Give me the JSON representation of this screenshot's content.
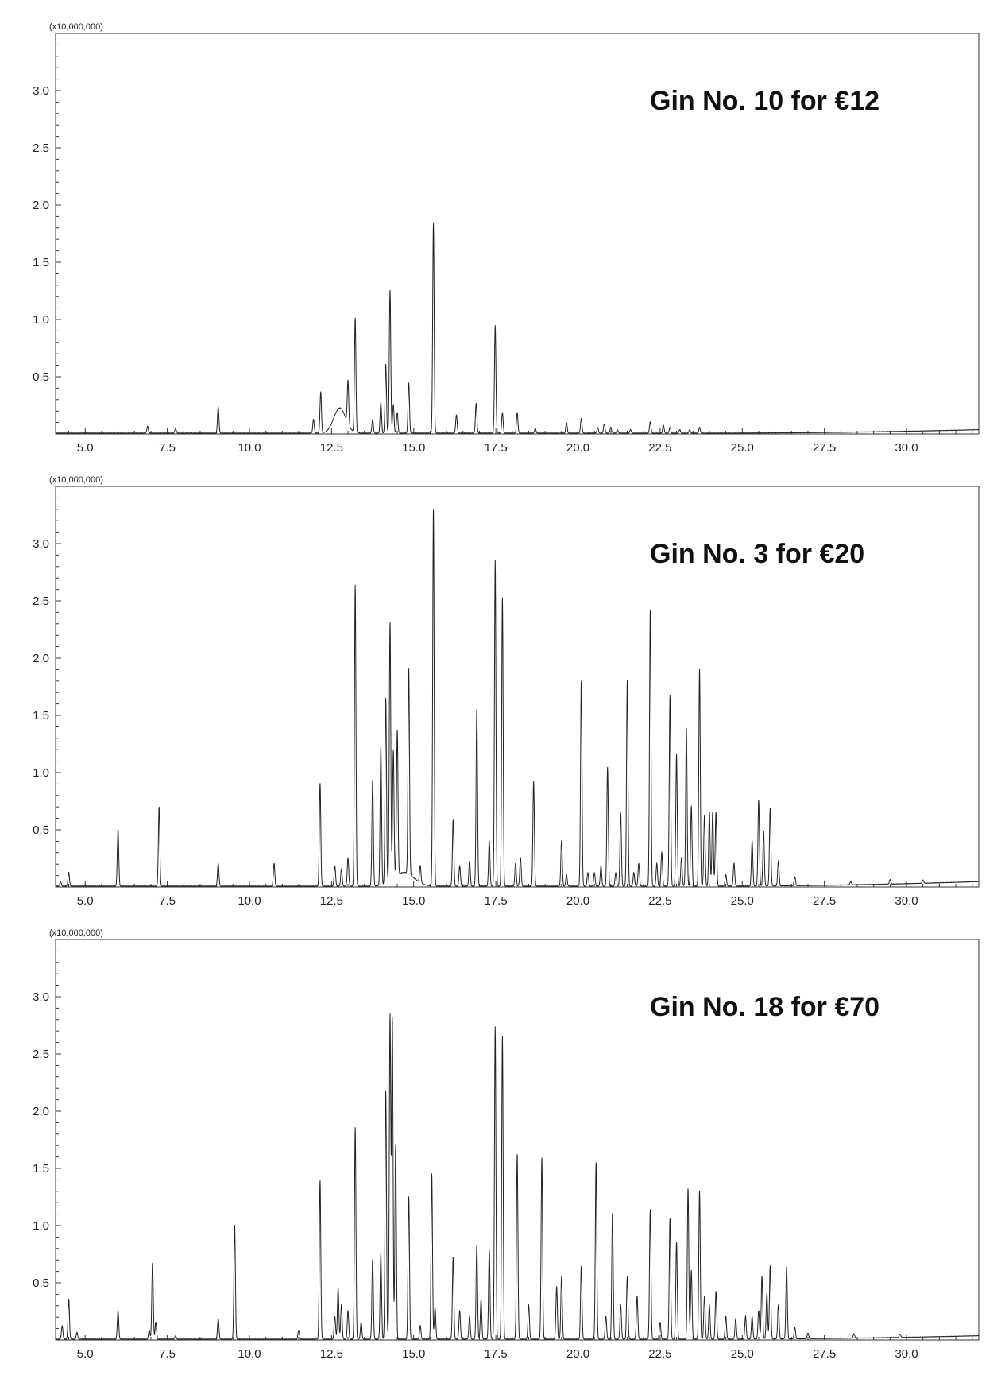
{
  "chart_data": [
    {
      "type": "line",
      "title": "Gin No. 10 for €12",
      "multiplier_label": "(x10,000,000)",
      "xlabel": "",
      "ylabel": "",
      "xlim": [
        4.1,
        32.2
      ],
      "ylim": [
        0,
        3.5
      ],
      "x_ticks": [
        "5.0",
        "7.5",
        "10.0",
        "12.5",
        "15.0",
        "17.5",
        "20.0",
        "22.5",
        "25.0",
        "27.5",
        "30.0"
      ],
      "y_ticks": [
        "0.5",
        "1.0",
        "1.5",
        "2.0",
        "2.5",
        "3.0"
      ],
      "grid": false,
      "line_color": "#222222",
      "baseline_end": 0.03,
      "humps": [
        [
          12.75,
          0.22,
          0.18
        ]
      ],
      "peaks": [
        [
          6.9,
          0.06
        ],
        [
          7.75,
          0.04
        ],
        [
          9.05,
          0.23
        ],
        [
          11.95,
          0.12
        ],
        [
          12.17,
          0.36
        ],
        [
          13.0,
          0.38
        ],
        [
          13.22,
          1.0
        ],
        [
          13.75,
          0.12
        ],
        [
          14.0,
          0.27
        ],
        [
          14.15,
          0.6
        ],
        [
          14.28,
          1.25
        ],
        [
          14.38,
          0.25
        ],
        [
          14.5,
          0.18
        ],
        [
          14.85,
          0.44
        ],
        [
          15.6,
          1.84
        ],
        [
          16.3,
          0.16
        ],
        [
          16.9,
          0.26
        ],
        [
          17.48,
          0.94
        ],
        [
          17.7,
          0.18
        ],
        [
          18.15,
          0.18
        ],
        [
          18.7,
          0.04
        ],
        [
          19.65,
          0.09
        ],
        [
          20.1,
          0.13
        ],
        [
          20.6,
          0.05
        ],
        [
          20.8,
          0.08
        ],
        [
          21.0,
          0.05
        ],
        [
          21.2,
          0.03
        ],
        [
          21.6,
          0.03
        ],
        [
          22.2,
          0.1
        ],
        [
          22.6,
          0.07
        ],
        [
          22.8,
          0.05
        ],
        [
          23.1,
          0.03
        ],
        [
          23.4,
          0.03
        ],
        [
          23.7,
          0.05
        ]
      ]
    },
    {
      "type": "line",
      "title": "Gin No. 3 for €20",
      "multiplier_label": "(x10,000,000)",
      "xlabel": "",
      "ylabel": "",
      "xlim": [
        4.1,
        32.2
      ],
      "ylim": [
        0,
        3.5
      ],
      "x_ticks": [
        "5.0",
        "7.5",
        "10.0",
        "12.5",
        "15.0",
        "17.5",
        "20.0",
        "22.5",
        "25.0",
        "27.5",
        "30.0"
      ],
      "y_ticks": [
        "0.5",
        "1.0",
        "1.5",
        "2.0",
        "2.5",
        "3.0"
      ],
      "grid": false,
      "line_color": "#222222",
      "baseline_end": 0.04,
      "humps": [
        [
          14.7,
          0.12,
          0.3
        ]
      ],
      "peaks": [
        [
          4.25,
          0.04
        ],
        [
          4.5,
          0.12
        ],
        [
          6.0,
          0.5
        ],
        [
          7.25,
          0.69
        ],
        [
          9.05,
          0.2
        ],
        [
          10.75,
          0.2
        ],
        [
          12.15,
          0.9
        ],
        [
          12.6,
          0.18
        ],
        [
          12.8,
          0.15
        ],
        [
          13.0,
          0.25
        ],
        [
          13.22,
          2.63
        ],
        [
          13.75,
          0.93
        ],
        [
          14.0,
          1.22
        ],
        [
          14.15,
          1.62
        ],
        [
          14.28,
          2.27
        ],
        [
          14.38,
          1.12
        ],
        [
          14.5,
          1.27
        ],
        [
          14.85,
          1.8
        ],
        [
          15.2,
          0.15
        ],
        [
          15.6,
          3.3
        ],
        [
          16.2,
          0.58
        ],
        [
          16.4,
          0.18
        ],
        [
          16.7,
          0.22
        ],
        [
          16.92,
          1.55
        ],
        [
          17.3,
          0.4
        ],
        [
          17.48,
          2.85
        ],
        [
          17.7,
          2.53
        ],
        [
          18.1,
          0.2
        ],
        [
          18.25,
          0.25
        ],
        [
          18.65,
          0.92
        ],
        [
          19.5,
          0.4
        ],
        [
          19.65,
          0.1
        ],
        [
          20.1,
          1.8
        ],
        [
          20.3,
          0.12
        ],
        [
          20.5,
          0.12
        ],
        [
          20.7,
          0.18
        ],
        [
          20.9,
          1.04
        ],
        [
          21.15,
          0.12
        ],
        [
          21.3,
          0.64
        ],
        [
          21.5,
          1.8
        ],
        [
          21.7,
          0.12
        ],
        [
          21.85,
          0.2
        ],
        [
          22.2,
          2.42
        ],
        [
          22.4,
          0.2
        ],
        [
          22.55,
          0.3
        ],
        [
          22.8,
          1.67
        ],
        [
          23.0,
          1.15
        ],
        [
          23.15,
          0.25
        ],
        [
          23.3,
          1.38
        ],
        [
          23.45,
          0.7
        ],
        [
          23.7,
          1.9
        ],
        [
          23.85,
          0.62
        ],
        [
          24.0,
          0.65
        ],
        [
          24.1,
          0.65
        ],
        [
          24.2,
          0.65
        ],
        [
          24.5,
          0.1
        ],
        [
          24.75,
          0.2
        ],
        [
          25.3,
          0.4
        ],
        [
          25.5,
          0.75
        ],
        [
          25.65,
          0.48
        ],
        [
          25.85,
          0.68
        ],
        [
          26.1,
          0.22
        ],
        [
          26.6,
          0.08
        ],
        [
          28.3,
          0.03
        ],
        [
          29.5,
          0.04
        ],
        [
          30.5,
          0.03
        ]
      ]
    },
    {
      "type": "line",
      "title": "Gin No. 18 for €70",
      "multiplier_label": "(x10,000,000)",
      "xlabel": "",
      "ylabel": "",
      "xlim": [
        4.1,
        32.2
      ],
      "ylim": [
        0,
        3.5
      ],
      "x_ticks": [
        "5.0",
        "7.5",
        "10.0",
        "12.5",
        "15.0",
        "17.5",
        "20.0",
        "22.5",
        "25.0",
        "27.5",
        "30.0"
      ],
      "y_ticks": [
        "0.5",
        "1.0",
        "1.5",
        "2.0",
        "2.5",
        "3.0"
      ],
      "grid": false,
      "line_color": "#222222",
      "baseline_end": 0.03,
      "humps": [],
      "peaks": [
        [
          4.3,
          0.12
        ],
        [
          4.5,
          0.35
        ],
        [
          4.75,
          0.06
        ],
        [
          6.0,
          0.25
        ],
        [
          6.95,
          0.08
        ],
        [
          7.05,
          0.67
        ],
        [
          7.15,
          0.15
        ],
        [
          7.75,
          0.03
        ],
        [
          9.05,
          0.18
        ],
        [
          9.55,
          1.0
        ],
        [
          11.5,
          0.08
        ],
        [
          12.15,
          1.39
        ],
        [
          12.6,
          0.2
        ],
        [
          12.7,
          0.45
        ],
        [
          12.8,
          0.3
        ],
        [
          13.0,
          0.25
        ],
        [
          13.22,
          1.85
        ],
        [
          13.4,
          0.15
        ],
        [
          13.75,
          0.7
        ],
        [
          14.0,
          0.75
        ],
        [
          14.15,
          2.17
        ],
        [
          14.28,
          2.83
        ],
        [
          14.35,
          2.8
        ],
        [
          14.45,
          1.7
        ],
        [
          14.85,
          1.25
        ],
        [
          15.2,
          0.12
        ],
        [
          15.55,
          1.45
        ],
        [
          15.65,
          0.28
        ],
        [
          16.2,
          0.72
        ],
        [
          16.4,
          0.25
        ],
        [
          16.7,
          0.2
        ],
        [
          16.92,
          0.82
        ],
        [
          17.05,
          0.35
        ],
        [
          17.3,
          0.78
        ],
        [
          17.48,
          2.73
        ],
        [
          17.7,
          2.66
        ],
        [
          18.15,
          1.62
        ],
        [
          18.5,
          0.3
        ],
        [
          18.9,
          1.59
        ],
        [
          19.35,
          0.46
        ],
        [
          19.5,
          0.55
        ],
        [
          20.1,
          0.64
        ],
        [
          20.55,
          1.55
        ],
        [
          20.85,
          0.2
        ],
        [
          21.05,
          1.1
        ],
        [
          21.3,
          0.3
        ],
        [
          21.5,
          0.55
        ],
        [
          21.8,
          0.38
        ],
        [
          22.2,
          1.14
        ],
        [
          22.5,
          0.15
        ],
        [
          22.8,
          1.06
        ],
        [
          23.0,
          0.85
        ],
        [
          23.35,
          1.32
        ],
        [
          23.45,
          0.6
        ],
        [
          23.7,
          1.3
        ],
        [
          23.85,
          0.38
        ],
        [
          24.0,
          0.3
        ],
        [
          24.2,
          0.42
        ],
        [
          24.5,
          0.2
        ],
        [
          24.8,
          0.18
        ],
        [
          25.1,
          0.2
        ],
        [
          25.3,
          0.2
        ],
        [
          25.5,
          0.25
        ],
        [
          25.6,
          0.55
        ],
        [
          25.75,
          0.4
        ],
        [
          25.85,
          0.64
        ],
        [
          26.1,
          0.3
        ],
        [
          26.35,
          0.63
        ],
        [
          26.6,
          0.1
        ],
        [
          27.0,
          0.05
        ],
        [
          28.4,
          0.04
        ],
        [
          29.8,
          0.03
        ]
      ]
    }
  ]
}
